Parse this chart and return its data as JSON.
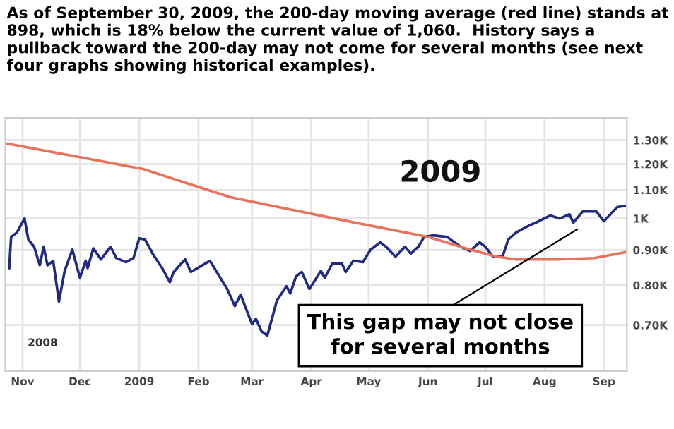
{
  "chart_data": {
    "type": "line",
    "title": "As of September 30, 2009, the 200-day moving average (red line) stands at 898, which is 18% below the current value of 1,060.  History says a pullback toward the 200-day may not come for several months (see next four graphs showing historical examples).",
    "series": [
      {
        "color": "#1f2a80",
        "x": [
          "2008-10-25",
          "2008-10-26",
          "2008-10-29",
          "2008-11-02",
          "2008-11-04",
          "2008-11-07",
          "2008-11-10",
          "2008-11-12",
          "2008-11-14",
          "2008-11-17",
          "2008-11-20",
          "2008-11-23",
          "2008-11-27",
          "2008-12-01",
          "2008-12-04",
          "2008-12-05",
          "2008-12-08",
          "2008-12-12",
          "2008-12-17",
          "2008-12-20",
          "2008-12-25",
          "2008-12-29",
          "2009-01-01",
          "2009-01-04",
          "2009-01-08",
          "2009-01-13",
          "2009-01-17",
          "2009-01-19",
          "2009-01-25",
          "2009-01-28",
          "2009-02-07",
          "2009-02-11",
          "2009-02-16",
          "2009-02-20",
          "2009-02-23",
          "2009-03-01",
          "2009-03-03",
          "2009-03-06",
          "2009-03-09",
          "2009-03-12",
          "2009-03-14",
          "2009-03-19",
          "2009-03-21",
          "2009-03-24",
          "2009-03-27",
          "2009-03-31",
          "2009-04-06",
          "2009-04-08",
          "2009-04-12",
          "2009-04-17",
          "2009-04-19",
          "2009-04-23",
          "2009-04-28",
          "2009-05-02",
          "2009-05-07",
          "2009-05-10",
          "2009-05-15",
          "2009-05-20",
          "2009-05-23",
          "2009-05-27",
          "2009-05-30",
          "2009-06-04",
          "2009-06-11",
          "2009-06-18",
          "2009-06-23",
          "2009-06-28",
          "2009-07-01",
          "2009-07-05",
          "2009-07-10",
          "2009-07-13",
          "2009-07-17",
          "2009-07-24",
          "2009-07-29",
          "2009-08-04",
          "2009-08-09",
          "2009-08-14",
          "2009-08-16",
          "2009-08-21",
          "2009-08-28",
          "2009-09-01",
          "2009-09-08",
          "2009-09-12"
        ],
        "values": [
          847,
          940,
          954,
          1000,
          932,
          910,
          855,
          910,
          855,
          868,
          757,
          839,
          901,
          820,
          868,
          847,
          905,
          872,
          910,
          876,
          864,
          876,
          936,
          932,
          889,
          847,
          808,
          836,
          872,
          836,
          868,
          832,
          790,
          746,
          775,
          702,
          715,
          685,
          676,
          725,
          760,
          797,
          778,
          824,
          836,
          790,
          839,
          820,
          860,
          860,
          836,
          868,
          864,
          901,
          923,
          910,
          880,
          910,
          889,
          910,
          940,
          945,
          940,
          910,
          897,
          923,
          910,
          880,
          880,
          932,
          954,
          977,
          991,
          1010,
          1000,
          1014,
          986,
          1024,
          1024,
          991,
          1039,
          1043
        ]
      },
      {
        "color": "#e8735a",
        "x": [
          "2008-10-24",
          "2009-01-03",
          "2009-02-18",
          "2009-04-24",
          "2009-06-01",
          "2009-06-23",
          "2009-07-07",
          "2009-07-17",
          "2009-08-08",
          "2009-08-27",
          "2009-09-12"
        ],
        "values": [
          1285,
          1180,
          1073,
          986,
          940,
          901,
          880,
          872,
          872,
          876,
          893
        ]
      }
    ],
    "xlim": [
      "2008-10-23",
      "2009-09-13"
    ],
    "xticks": [
      {
        "value": "2008-11-01",
        "label": "Nov"
      },
      {
        "value": "2008-12-01",
        "label": "Dec"
      },
      {
        "value": "2009-01-01",
        "label": "2009"
      },
      {
        "value": "2009-02-01",
        "label": "Feb"
      },
      {
        "value": "2009-03-01",
        "label": "Mar"
      },
      {
        "value": "2009-04-01",
        "label": "Apr"
      },
      {
        "value": "2009-05-01",
        "label": "May"
      },
      {
        "value": "2009-06-01",
        "label": "Jun"
      },
      {
        "value": "2009-07-01",
        "label": "Jul"
      },
      {
        "value": "2009-08-01",
        "label": "Aug"
      },
      {
        "value": "2009-09-01",
        "label": "Sep"
      }
    ],
    "log": "y",
    "ylim": [
      600,
      1400
    ],
    "yticks": [
      {
        "value": 700,
        "label": "0.70K"
      },
      {
        "value": 800,
        "label": "0.80K"
      },
      {
        "value": 900,
        "label": "0.90K"
      },
      {
        "value": 1000,
        "label": "1K"
      },
      {
        "value": 1100,
        "label": "1.10K"
      },
      {
        "value": 1200,
        "label": "1.20K"
      },
      {
        "value": 1300,
        "label": "1.30K"
      }
    ],
    "grid": true,
    "annotations": [
      "2009",
      "2008",
      "This gap may not close\nfor several months"
    ]
  }
}
